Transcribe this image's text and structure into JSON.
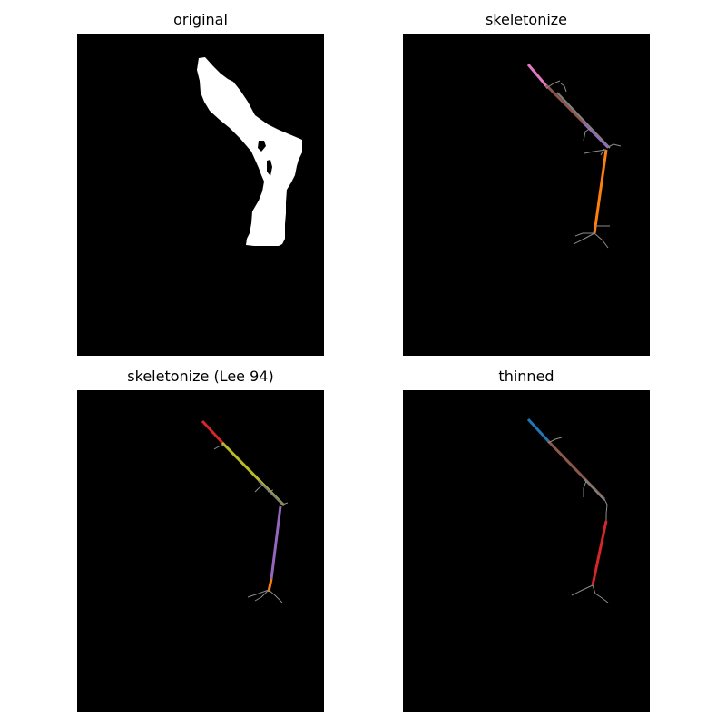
{
  "panels": [
    {
      "id": "original",
      "title": "original"
    },
    {
      "id": "skeletonize",
      "title": "skeletonize"
    },
    {
      "id": "lee",
      "title": "skeletonize (Lee 94)"
    },
    {
      "id": "thinned",
      "title": "thinned"
    }
  ],
  "colors": {
    "background": "#000000",
    "mask": "#ffffff",
    "branch_minor": "#8c8c8c",
    "tab_blue": "#1f77b4",
    "tab_orange": "#ff7f0e",
    "tab_red": "#d62728",
    "tab_purple": "#9467bd",
    "tab_brown": "#8c564b",
    "tab_pink": "#e377c2",
    "tab_gray": "#7f7f7f",
    "tab_olive": "#bcbd22"
  }
}
